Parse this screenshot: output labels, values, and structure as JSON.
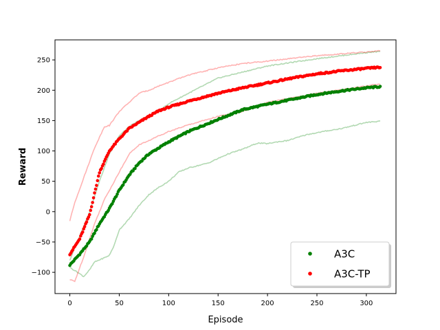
{
  "chart_data": {
    "type": "scatter",
    "xlabel": "Episode",
    "ylabel": "Reward",
    "xlim": [
      -15,
      330
    ],
    "ylim": [
      -135,
      283
    ],
    "xticks": [
      0,
      50,
      100,
      150,
      200,
      250,
      300
    ],
    "yticks": [
      -100,
      -50,
      0,
      50,
      100,
      150,
      200,
      250
    ],
    "legend_position": "lower-right",
    "series": [
      {
        "name": "A3C",
        "color": "#008000",
        "mean_knots": [
          [
            0,
            -88
          ],
          [
            10,
            -70
          ],
          [
            20,
            -50
          ],
          [
            30,
            -20
          ],
          [
            40,
            5
          ],
          [
            50,
            35
          ],
          [
            60,
            60
          ],
          [
            70,
            80
          ],
          [
            80,
            95
          ],
          [
            90,
            105
          ],
          [
            100,
            115
          ],
          [
            120,
            132
          ],
          [
            150,
            152
          ],
          [
            175,
            168
          ],
          [
            200,
            177
          ],
          [
            225,
            185
          ],
          [
            250,
            193
          ],
          [
            275,
            199
          ],
          [
            300,
            204
          ],
          [
            315,
            206
          ]
        ],
        "band_upper_knots": [
          [
            0,
            -80
          ],
          [
            10,
            -40
          ],
          [
            20,
            0
          ],
          [
            30,
            50
          ],
          [
            40,
            95
          ],
          [
            50,
            125
          ],
          [
            60,
            140
          ],
          [
            70,
            150
          ],
          [
            90,
            165
          ],
          [
            100,
            178
          ],
          [
            120,
            195
          ],
          [
            150,
            220
          ],
          [
            175,
            230
          ],
          [
            200,
            240
          ],
          [
            250,
            252
          ],
          [
            300,
            262
          ],
          [
            315,
            264
          ]
        ],
        "band_lower_knots": [
          [
            0,
            -92
          ],
          [
            8,
            -100
          ],
          [
            14,
            -107
          ],
          [
            20,
            -96
          ],
          [
            25,
            -83
          ],
          [
            35,
            -76
          ],
          [
            40,
            -72
          ],
          [
            45,
            -55
          ],
          [
            50,
            -30
          ],
          [
            60,
            -12
          ],
          [
            70,
            10
          ],
          [
            80,
            28
          ],
          [
            90,
            40
          ],
          [
            100,
            50
          ],
          [
            110,
            65
          ],
          [
            120,
            72
          ],
          [
            140,
            80
          ],
          [
            160,
            95
          ],
          [
            175,
            103
          ],
          [
            190,
            113
          ],
          [
            200,
            112
          ],
          [
            210,
            115
          ],
          [
            220,
            117
          ],
          [
            230,
            122
          ],
          [
            240,
            127
          ],
          [
            250,
            130
          ],
          [
            260,
            133
          ],
          [
            275,
            137
          ],
          [
            290,
            143
          ],
          [
            300,
            147
          ],
          [
            315,
            149
          ]
        ]
      },
      {
        "name": "A3C-TP",
        "color": "#ff0000",
        "mean_knots": [
          [
            0,
            -70
          ],
          [
            10,
            -45
          ],
          [
            20,
            -5
          ],
          [
            30,
            65
          ],
          [
            40,
            100
          ],
          [
            50,
            120
          ],
          [
            60,
            137
          ],
          [
            70,
            147
          ],
          [
            80,
            157
          ],
          [
            90,
            166
          ],
          [
            100,
            172
          ],
          [
            120,
            182
          ],
          [
            150,
            195
          ],
          [
            175,
            204
          ],
          [
            200,
            212
          ],
          [
            225,
            220
          ],
          [
            250,
            227
          ],
          [
            275,
            232
          ],
          [
            300,
            236
          ],
          [
            315,
            238
          ]
        ],
        "band_upper_knots": [
          [
            0,
            -15
          ],
          [
            5,
            15
          ],
          [
            15,
            60
          ],
          [
            25,
            105
          ],
          [
            35,
            140
          ],
          [
            40,
            142
          ],
          [
            50,
            165
          ],
          [
            60,
            180
          ],
          [
            70,
            195
          ],
          [
            80,
            200
          ],
          [
            90,
            207
          ],
          [
            100,
            213
          ],
          [
            120,
            225
          ],
          [
            150,
            237
          ],
          [
            175,
            244
          ],
          [
            200,
            248
          ],
          [
            250,
            257
          ],
          [
            300,
            263
          ],
          [
            315,
            265
          ]
        ],
        "band_lower_knots": [
          [
            0,
            -112
          ],
          [
            5,
            -115
          ],
          [
            15,
            -70
          ],
          [
            25,
            -20
          ],
          [
            35,
            20
          ],
          [
            40,
            35
          ],
          [
            50,
            65
          ],
          [
            60,
            95
          ],
          [
            70,
            110
          ],
          [
            80,
            117
          ],
          [
            90,
            125
          ],
          [
            100,
            132
          ],
          [
            120,
            143
          ],
          [
            150,
            157
          ],
          [
            175,
            165
          ],
          [
            200,
            180
          ],
          [
            250,
            195
          ],
          [
            300,
            207
          ],
          [
            315,
            211
          ]
        ]
      }
    ]
  }
}
